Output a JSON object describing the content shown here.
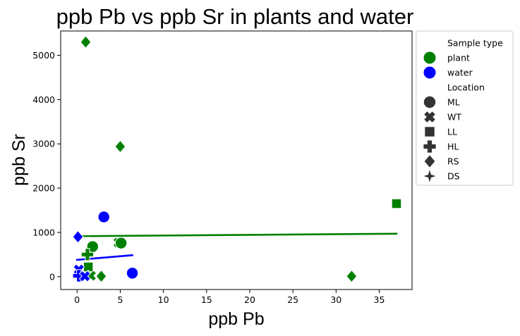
{
  "chart_data": {
    "type": "scatter",
    "title": "ppb Pb vs ppb Sr in plants and water",
    "xlabel": "ppb Pb",
    "ylabel": "ppb Sr",
    "xlim": [
      -1.9,
      38.8
    ],
    "ylim": [
      -290,
      5550
    ],
    "xticks": [
      0,
      5,
      10,
      15,
      20,
      25,
      30,
      35
    ],
    "yticks": [
      0,
      1000,
      2000,
      3000,
      4000,
      5000
    ],
    "grid": false,
    "legend": {
      "placement": "outside-right",
      "hue_title": "Sample type",
      "style_title": "Location",
      "hue_entries": [
        {
          "label": "plant",
          "color": "#008000"
        },
        {
          "label": "water",
          "color": "#0000ff"
        }
      ],
      "style_entries": [
        {
          "label": "ML",
          "marker": "circle"
        },
        {
          "label": "WT",
          "marker": "x"
        },
        {
          "label": "LL",
          "marker": "square"
        },
        {
          "label": "HL",
          "marker": "plus"
        },
        {
          "label": "RS",
          "marker": "diamond"
        },
        {
          "label": "DS",
          "marker": "star"
        }
      ]
    },
    "colors": {
      "plant": "#008000",
      "water": "#0000ff",
      "legend_marker": "#333333"
    },
    "points": [
      {
        "x": 1.0,
        "y": 5300,
        "sample_type": "plant",
        "location": "RS"
      },
      {
        "x": 5.0,
        "y": 2940,
        "sample_type": "plant",
        "location": "RS"
      },
      {
        "x": 37.0,
        "y": 1650,
        "sample_type": "plant",
        "location": "LL"
      },
      {
        "x": 31.8,
        "y": 10,
        "sample_type": "plant",
        "location": "RS"
      },
      {
        "x": 3.1,
        "y": 1350,
        "sample_type": "water",
        "location": "ML"
      },
      {
        "x": 0.1,
        "y": 900,
        "sample_type": "water",
        "location": "RS"
      },
      {
        "x": 4.8,
        "y": 770,
        "sample_type": "plant",
        "location": "WT"
      },
      {
        "x": 5.1,
        "y": 760,
        "sample_type": "plant",
        "location": "ML"
      },
      {
        "x": 1.8,
        "y": 680,
        "sample_type": "plant",
        "location": "ML"
      },
      {
        "x": 1.2,
        "y": 500,
        "sample_type": "plant",
        "location": "HL"
      },
      {
        "x": 1.3,
        "y": 220,
        "sample_type": "plant",
        "location": "LL"
      },
      {
        "x": 6.4,
        "y": 80,
        "sample_type": "water",
        "location": "ML"
      },
      {
        "x": 2.8,
        "y": 10,
        "sample_type": "plant",
        "location": "RS"
      },
      {
        "x": 1.6,
        "y": 20,
        "sample_type": "plant",
        "location": "WT"
      },
      {
        "x": 0.2,
        "y": 160,
        "sample_type": "water",
        "location": "WT"
      },
      {
        "x": 0.2,
        "y": 20,
        "sample_type": "water",
        "location": "HL"
      },
      {
        "x": 0.9,
        "y": 10,
        "sample_type": "water",
        "location": "WT"
      }
    ],
    "regression_lines": [
      {
        "sample_type": "plant",
        "x": [
          0,
          37
        ],
        "y": [
          915,
          970
        ]
      },
      {
        "sample_type": "water",
        "x": [
          0,
          6.4
        ],
        "y": [
          380,
          485
        ]
      }
    ]
  }
}
